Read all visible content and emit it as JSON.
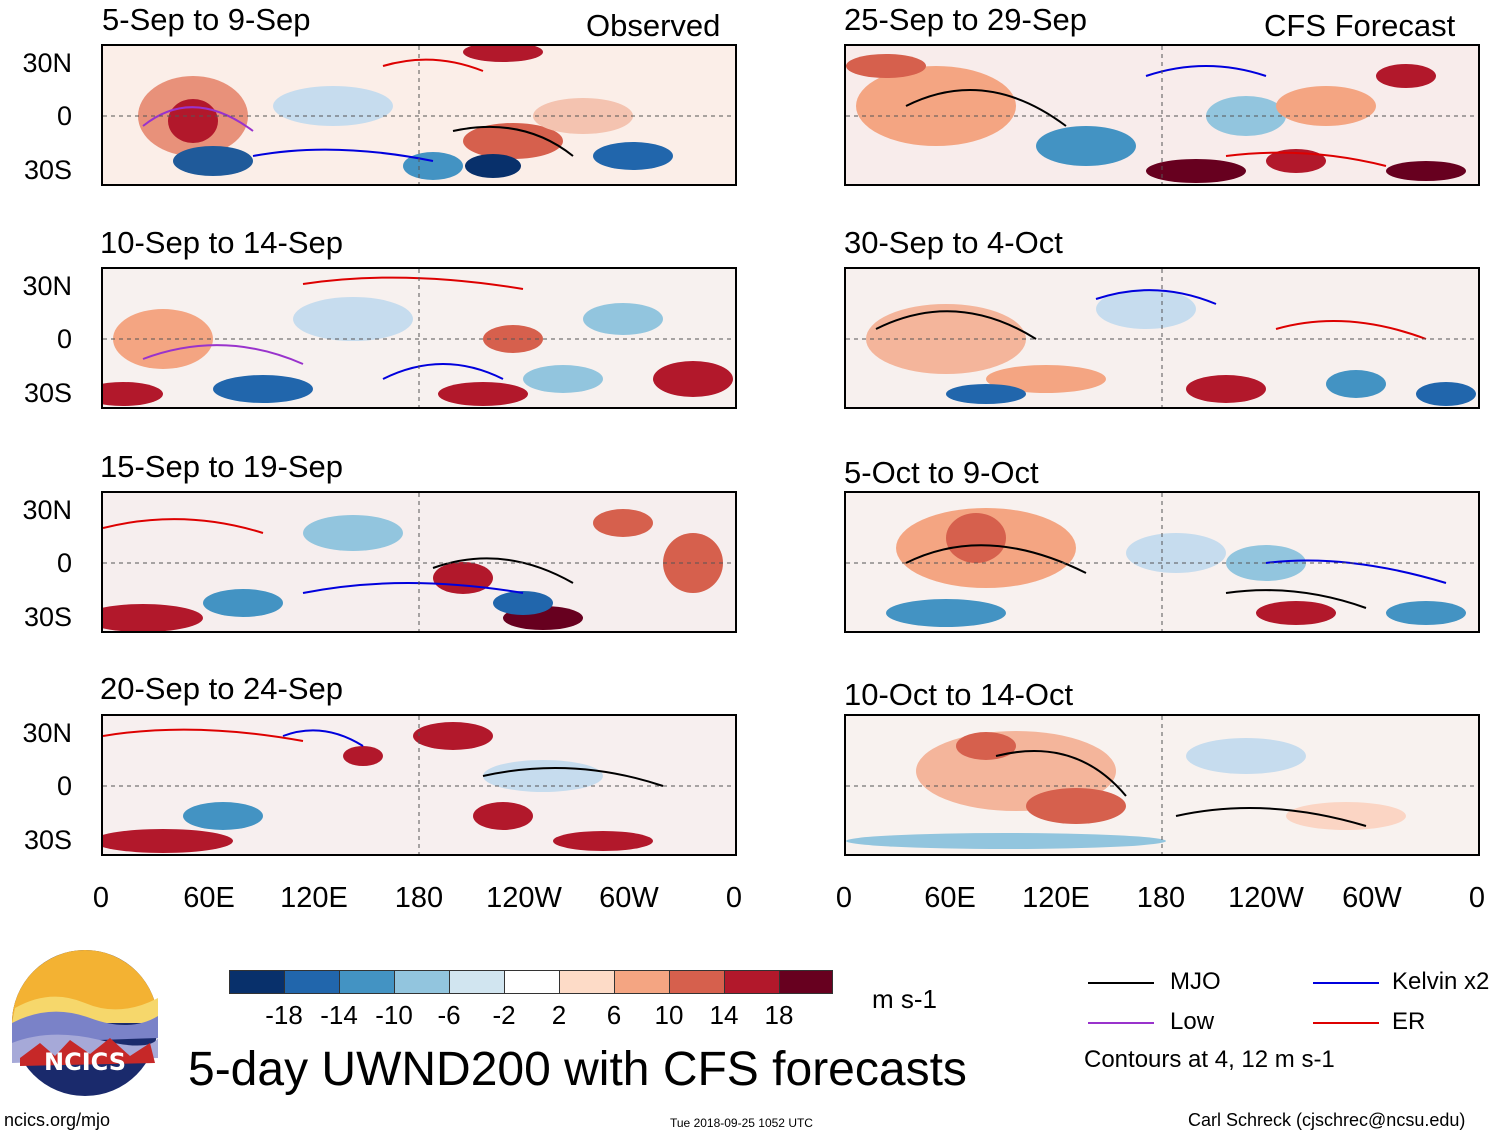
{
  "figure": {
    "title": "5-day UWND200 with CFS forecasts",
    "left_header": "Observed",
    "right_header": "CFS Forecast",
    "credit_url": "ncics.org/mjo",
    "timestamp": "Tue 2018-09-25 1052 UTC",
    "author": "Carl Schreck (cjschrec@ncsu.edu)",
    "logo_text": "NCICS"
  },
  "panels": {
    "observed": [
      {
        "period": "5-Sep to 9-Sep"
      },
      {
        "period": "10-Sep to 14-Sep"
      },
      {
        "period": "15-Sep to 19-Sep"
      },
      {
        "period": "20-Sep to 24-Sep"
      }
    ],
    "forecast": [
      {
        "period": "25-Sep to 29-Sep"
      },
      {
        "period": "30-Sep to 4-Oct"
      },
      {
        "period": "5-Oct to 9-Oct"
      },
      {
        "period": "10-Oct to 14-Oct"
      }
    ]
  },
  "axes": {
    "y_ticks": [
      "30N",
      "0",
      "30S"
    ],
    "x_ticks": [
      "0",
      "60E",
      "120E",
      "180",
      "120W",
      "60W",
      "0"
    ]
  },
  "colorbar": {
    "unit": "m s-1",
    "labels": [
      "-18",
      "-14",
      "-10",
      "-6",
      "-2",
      "2",
      "6",
      "10",
      "14",
      "18"
    ],
    "colors": [
      "#08306b",
      "#2166ac",
      "#4393c3",
      "#92c5de",
      "#d1e5f0",
      "#ffffff",
      "#fddbc7",
      "#f4a582",
      "#d6604d",
      "#b2182b",
      "#67001f"
    ]
  },
  "legend": {
    "items": [
      {
        "label": "MJO",
        "color": "#000000"
      },
      {
        "label": "Kelvin x2",
        "color": "#0000dd"
      },
      {
        "label": "Low",
        "color": "#9933cc"
      },
      {
        "label": "ER",
        "color": "#dd0000"
      }
    ],
    "note": "Contours at 4, 12 m s-1"
  }
}
